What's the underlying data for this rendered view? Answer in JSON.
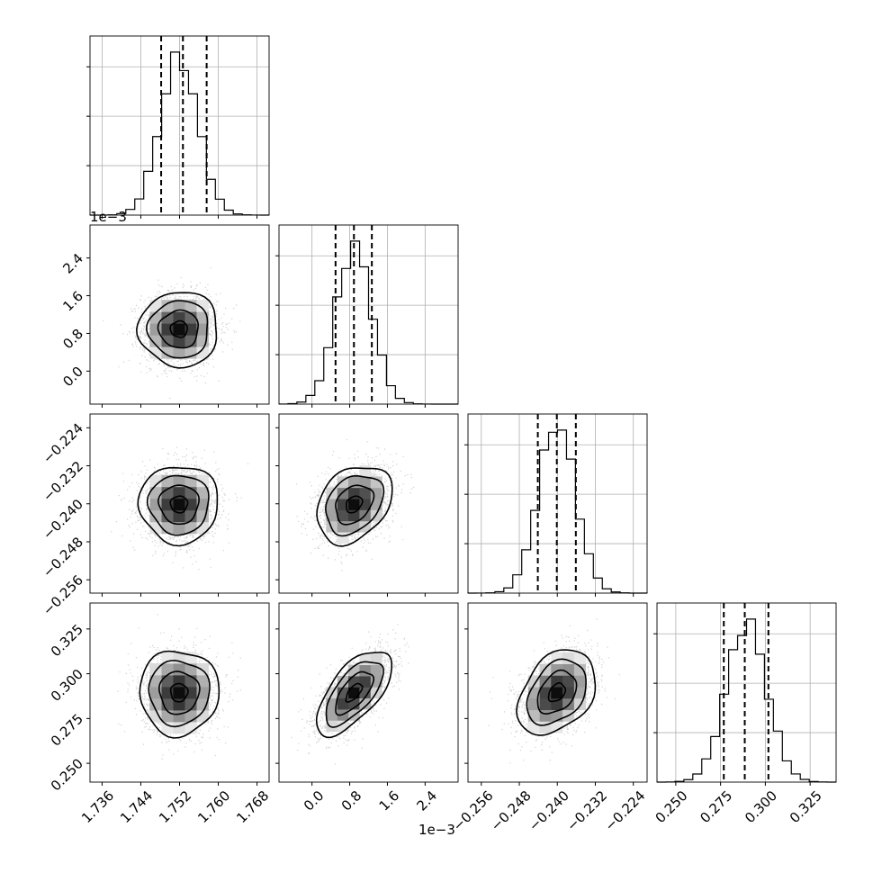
{
  "chart_data": {
    "type": "corner",
    "grid": true,
    "parameters": [
      {
        "xlim": [
          1.7335,
          1.7705
        ],
        "ticks": [
          1.736,
          1.744,
          1.752,
          1.76,
          1.768
        ],
        "tick_labels": [
          "1.736",
          "1.744",
          "1.752",
          "1.760",
          "1.768"
        ],
        "offset_label": "",
        "mean": 1.7519,
        "std": 0.0039,
        "quantiles": [
          1.7482,
          1.7527,
          1.7576
        ]
      },
      {
        "xlim": [
          -0.7,
          3.1
        ],
        "ticks": [
          0.0,
          0.8,
          1.6,
          2.4
        ],
        "tick_labels": [
          "0.0",
          "0.8",
          "1.6",
          "2.4"
        ],
        "offset_label": "1e−3",
        "mean": 0.89,
        "std": 0.38,
        "quantiles": [
          0.5,
          0.89,
          1.27
        ]
      },
      {
        "xlim": [
          -0.2588,
          -0.2211
        ],
        "ticks": [
          -0.256,
          -0.248,
          -0.24,
          -0.232,
          -0.224
        ],
        "tick_labels": [
          "−0.256",
          "−0.248",
          "−0.240",
          "−0.232",
          "−0.224"
        ],
        "offset_label": "",
        "mean": -0.2401,
        "std": 0.0039,
        "quantiles": [
          -0.2441,
          -0.2401,
          -0.2361
        ]
      },
      {
        "xlim": [
          0.2395,
          0.3395
        ],
        "ticks": [
          0.25,
          0.275,
          0.3,
          0.325
        ],
        "tick_labels": [
          "0.250",
          "0.275",
          "0.300",
          "0.325"
        ],
        "offset_label": "",
        "mean": 0.2895,
        "std": 0.0113,
        "quantiles": [
          0.2768,
          0.2885,
          0.3017
        ]
      }
    ],
    "correlations": [
      [
        1,
        0,
        0,
        0
      ],
      [
        0,
        1,
        0.3,
        0.65
      ],
      [
        0,
        0.3,
        1,
        0.35
      ],
      [
        0,
        0.65,
        0.35,
        1
      ]
    ]
  }
}
